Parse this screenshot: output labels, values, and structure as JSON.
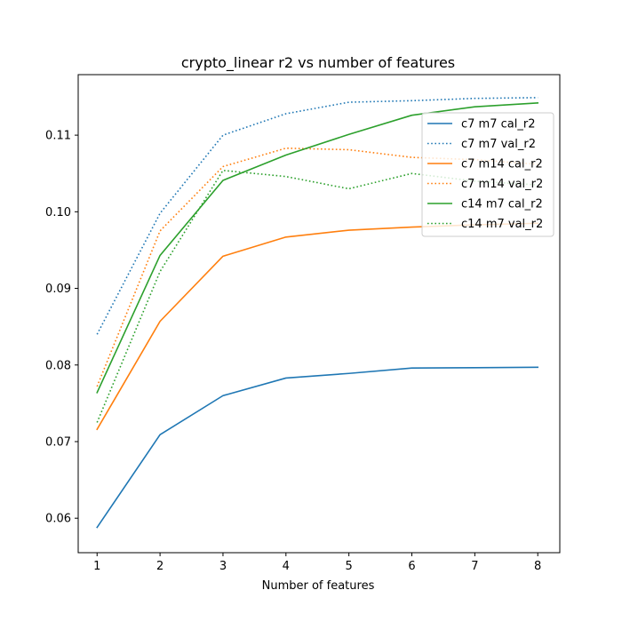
{
  "chart_data": {
    "type": "line",
    "title": "crypto_linear r2 vs number of features",
    "xlabel": "Number of features",
    "ylabel": "",
    "x": [
      1,
      2,
      3,
      4,
      5,
      6,
      7,
      8
    ],
    "xlim": [
      0.7,
      8.35
    ],
    "ylim": [
      0.0555,
      0.1179
    ],
    "xticks": [
      "1",
      "2",
      "3",
      "4",
      "5",
      "6",
      "7",
      "8"
    ],
    "yticks": [
      0.06,
      0.07,
      0.08,
      0.09,
      0.1,
      0.11
    ],
    "ytick_labels": [
      "0.06",
      "0.07",
      "0.08",
      "0.09",
      "0.10",
      "0.11"
    ],
    "grid": false,
    "legend_position": "upper right",
    "series": [
      {
        "name": "c7 m7 cal_r2",
        "color": "#1f77b4",
        "style": "solid",
        "values": [
          0.0588,
          0.0709,
          0.076,
          0.0783,
          0.0789,
          0.0796,
          0.07965,
          0.0797
        ]
      },
      {
        "name": "c7 m7 val_r2",
        "color": "#1f77b4",
        "style": "dotted",
        "values": [
          0.084,
          0.0998,
          0.11,
          0.1128,
          0.1143,
          0.1145,
          0.1148,
          0.1149
        ]
      },
      {
        "name": "c7 m14 cal_r2",
        "color": "#ff7f0e",
        "style": "solid",
        "values": [
          0.0716,
          0.0857,
          0.0942,
          0.0967,
          0.0976,
          0.098,
          0.0983,
          0.0985
        ]
      },
      {
        "name": "c7 m14 val_r2",
        "color": "#ff7f0e",
        "style": "dotted",
        "values": [
          0.0772,
          0.0975,
          0.1059,
          0.1083,
          0.1081,
          0.1071,
          0.1068,
          0.1062
        ]
      },
      {
        "name": "c14 m7 cal_r2",
        "color": "#2ca02c",
        "style": "solid",
        "values": [
          0.0764,
          0.0943,
          0.1041,
          0.1074,
          0.1101,
          0.1126,
          0.1137,
          0.1142
        ]
      },
      {
        "name": "c14 m7 val_r2",
        "color": "#2ca02c",
        "style": "dotted",
        "values": [
          0.0725,
          0.0922,
          0.1054,
          0.1046,
          0.103,
          0.105,
          0.104,
          0.1035
        ]
      }
    ]
  }
}
